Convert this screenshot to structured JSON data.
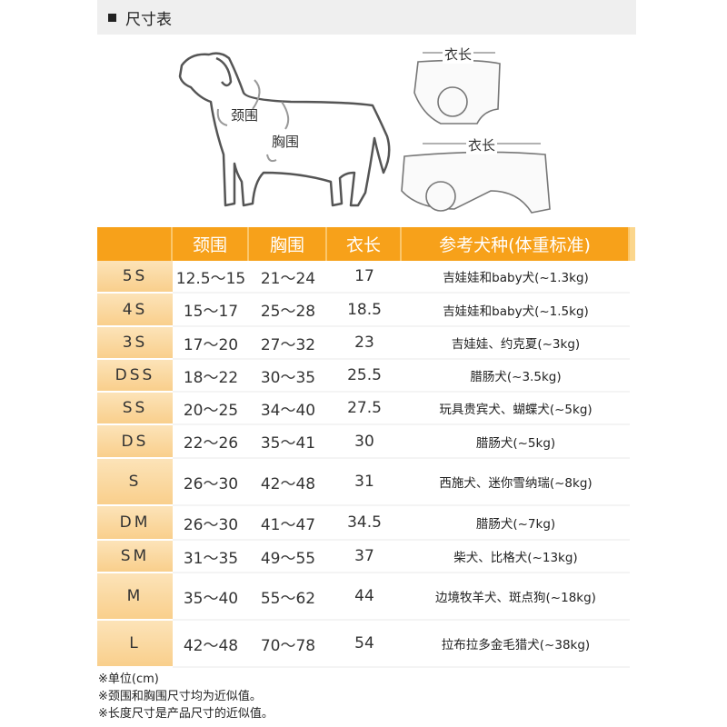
{
  "title": "尺寸表",
  "illustration": {
    "neck_label": "颈围",
    "chest_label": "胸围",
    "length_label_top": "衣长",
    "length_label_bottom": "衣长"
  },
  "table": {
    "headers": [
      "",
      "颈围",
      "胸围",
      "衣长",
      "参考犬种(体重标准)"
    ],
    "rows": [
      {
        "size": "5S",
        "neck": "12.5～15",
        "chest": "21～24",
        "length": "17",
        "breed": "吉娃娃和baby犬(~1.3kg)"
      },
      {
        "size": "4S",
        "neck": "15～17",
        "chest": "25～28",
        "length": "18.5",
        "breed": "吉娃娃和baby犬(~1.5kg)"
      },
      {
        "size": "3S",
        "neck": "17～20",
        "chest": "27～32",
        "length": "23",
        "breed": "吉娃娃、约克夏(~3kg)"
      },
      {
        "size": "DSS",
        "neck": "18～22",
        "chest": "30～35",
        "length": "25.5",
        "breed": "腊肠犬(~3.5kg)"
      },
      {
        "size": "SS",
        "neck": "20～25",
        "chest": "34～40",
        "length": "27.5",
        "breed": "玩具贵宾犬、蝴蝶犬(~5kg)"
      },
      {
        "size": "DS",
        "neck": "22～26",
        "chest": "35～41",
        "length": "30",
        "breed": "腊肠犬(~5kg)"
      },
      {
        "size": "S",
        "neck": "26～30",
        "chest": "42～48",
        "length": "31",
        "breed": "西施犬、迷你雪纳瑞(~8kg)"
      },
      {
        "size": "DM",
        "neck": "26～30",
        "chest": "41～47",
        "length": "34.5",
        "breed": "腊肠犬(~7kg)"
      },
      {
        "size": "SM",
        "neck": "31～35",
        "chest": "49～55",
        "length": "37",
        "breed": "柴犬、比格犬(~13kg)"
      },
      {
        "size": "M",
        "neck": "35～40",
        "chest": "55～62",
        "length": "44",
        "breed": "边境牧羊犬、斑点狗(~18kg)"
      },
      {
        "size": "L",
        "neck": "42～48",
        "chest": "70～78",
        "length": "54",
        "breed": "拉布拉多金毛猎犬(~38kg)"
      }
    ]
  },
  "notes": [
    "※单位(cm)",
    "※颈围和胸围尺寸均为近似值。",
    "※长度尺寸是产品尺寸的近似值。"
  ],
  "colors": {
    "header": "#f7a11a",
    "size_col": "#f9cf8c"
  }
}
